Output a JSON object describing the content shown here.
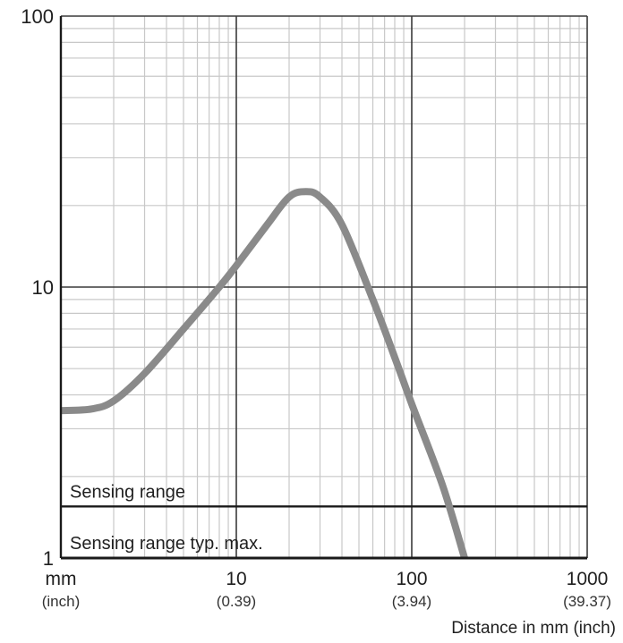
{
  "chart_data": {
    "type": "line",
    "title": "",
    "xlabel": "Distance in mm (inch)",
    "ylabel": "",
    "x_scale": "log",
    "y_scale": "log",
    "xlim": [
      1,
      1000
    ],
    "ylim": [
      1,
      100
    ],
    "grid": true,
    "x_ticks": [
      {
        "value": 1,
        "label": "mm",
        "sub": "(inch)"
      },
      {
        "value": 10,
        "label": "10",
        "sub": "(0.39)"
      },
      {
        "value": 100,
        "label": "100",
        "sub": "(3.94)"
      },
      {
        "value": 1000,
        "label": "1000",
        "sub": "(39.37)"
      }
    ],
    "y_ticks": [
      {
        "value": 1,
        "label": "1"
      },
      {
        "value": 10,
        "label": "10"
      },
      {
        "value": 100,
        "label": "100"
      }
    ],
    "series": [
      {
        "color": "#8a8a8a",
        "points": [
          [
            1,
            3.5
          ],
          [
            1.5,
            3.55
          ],
          [
            2,
            3.8
          ],
          [
            3,
            4.8
          ],
          [
            5,
            7.0
          ],
          [
            8,
            10.0
          ],
          [
            10,
            12.0
          ],
          [
            15,
            17.0
          ],
          [
            20,
            21.5
          ],
          [
            25,
            22.5
          ],
          [
            30,
            21.5
          ],
          [
            40,
            17.0
          ],
          [
            60,
            9.0
          ],
          [
            80,
            5.5
          ],
          [
            100,
            3.7
          ],
          [
            150,
            1.85
          ],
          [
            200,
            1.0
          ]
        ]
      }
    ],
    "bands": [
      {
        "label": "Sensing range",
        "y": 1.55
      },
      {
        "label": "Sensing range typ. max.",
        "y": 1.0
      }
    ],
    "colors": {
      "curve": "#8a8a8a",
      "grid_minor": "#c8c8c8",
      "grid_major": "#3a3a3a",
      "band_line": "#1a1a1a"
    }
  }
}
